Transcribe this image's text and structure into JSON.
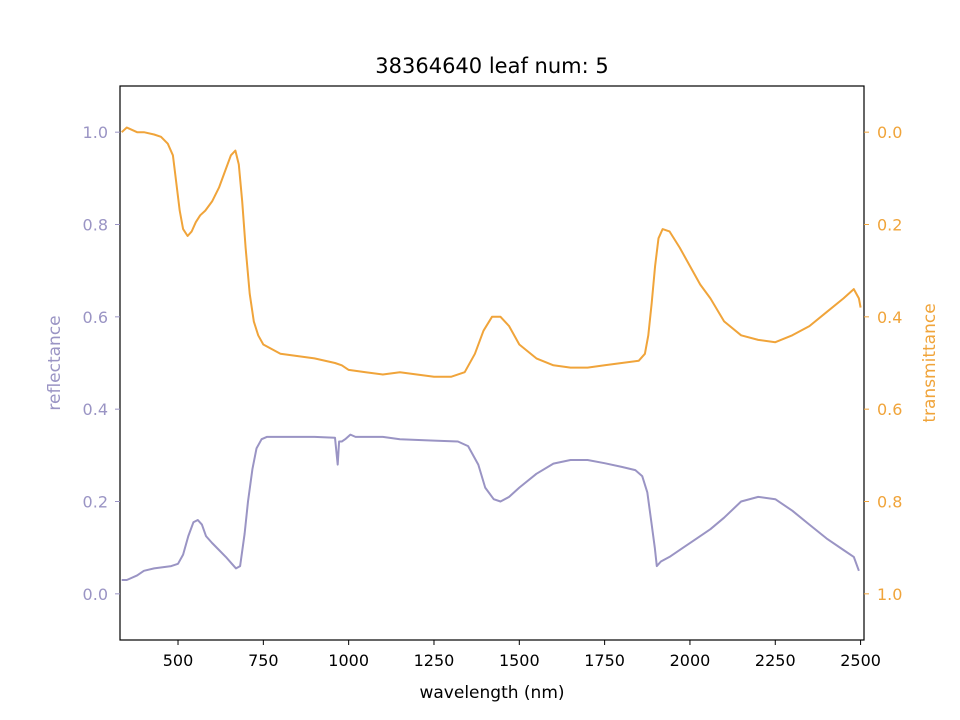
{
  "chart_data": {
    "type": "line",
    "title": "38364640 leaf num: 5",
    "xlabel": "wavelength (nm)",
    "xlim": [
      330,
      2510
    ],
    "x_ticks": [
      500,
      750,
      1000,
      1250,
      1500,
      1750,
      2000,
      2250,
      2500
    ],
    "x_tick_labels": [
      "500",
      "750",
      "1000",
      "1250",
      "1500",
      "1750",
      "2000",
      "2250",
      "2500"
    ],
    "grid": false,
    "left_axis": {
      "label": "reflectance",
      "color": "#9a94c4",
      "lim": [
        -0.1,
        1.1
      ],
      "ticks": [
        0.0,
        0.2,
        0.4,
        0.6,
        0.8,
        1.0
      ],
      "tick_labels": [
        "0.0",
        "0.2",
        "0.4",
        "0.6",
        "0.8",
        "1.0"
      ]
    },
    "right_axis": {
      "label": "transmittance",
      "color": "#f0a43a",
      "lim": [
        -0.1,
        1.1
      ],
      "inverted": true,
      "ticks": [
        0.0,
        0.2,
        0.4,
        0.6,
        0.8,
        1.0
      ],
      "tick_labels": [
        "0.0",
        "0.2",
        "0.4",
        "0.6",
        "0.8",
        "1.0"
      ]
    },
    "series": [
      {
        "axis": "left",
        "color": "#9a94c4",
        "points": [
          [
            335,
            0.03
          ],
          [
            350,
            0.03
          ],
          [
            380,
            0.04
          ],
          [
            400,
            0.05
          ],
          [
            430,
            0.055
          ],
          [
            480,
            0.06
          ],
          [
            500,
            0.065
          ],
          [
            515,
            0.085
          ],
          [
            530,
            0.125
          ],
          [
            545,
            0.155
          ],
          [
            558,
            0.16
          ],
          [
            570,
            0.15
          ],
          [
            582,
            0.125
          ],
          [
            600,
            0.11
          ],
          [
            620,
            0.095
          ],
          [
            640,
            0.08
          ],
          [
            658,
            0.065
          ],
          [
            670,
            0.055
          ],
          [
            682,
            0.06
          ],
          [
            695,
            0.13
          ],
          [
            705,
            0.2
          ],
          [
            718,
            0.27
          ],
          [
            730,
            0.315
          ],
          [
            745,
            0.335
          ],
          [
            760,
            0.34
          ],
          [
            800,
            0.34
          ],
          [
            900,
            0.34
          ],
          [
            960,
            0.338
          ],
          [
            968,
            0.28
          ],
          [
            972,
            0.33
          ],
          [
            980,
            0.33
          ],
          [
            990,
            0.335
          ],
          [
            1005,
            0.345
          ],
          [
            1020,
            0.34
          ],
          [
            1100,
            0.34
          ],
          [
            1150,
            0.335
          ],
          [
            1250,
            0.332
          ],
          [
            1320,
            0.33
          ],
          [
            1350,
            0.32
          ],
          [
            1380,
            0.28
          ],
          [
            1400,
            0.23
          ],
          [
            1425,
            0.205
          ],
          [
            1445,
            0.2
          ],
          [
            1470,
            0.21
          ],
          [
            1500,
            0.23
          ],
          [
            1550,
            0.26
          ],
          [
            1600,
            0.282
          ],
          [
            1650,
            0.29
          ],
          [
            1700,
            0.29
          ],
          [
            1750,
            0.283
          ],
          [
            1800,
            0.275
          ],
          [
            1840,
            0.268
          ],
          [
            1860,
            0.255
          ],
          [
            1875,
            0.22
          ],
          [
            1888,
            0.15
          ],
          [
            1897,
            0.1
          ],
          [
            1903,
            0.06
          ],
          [
            1915,
            0.07
          ],
          [
            1940,
            0.08
          ],
          [
            1980,
            0.1
          ],
          [
            2020,
            0.12
          ],
          [
            2060,
            0.14
          ],
          [
            2100,
            0.165
          ],
          [
            2150,
            0.2
          ],
          [
            2200,
            0.21
          ],
          [
            2250,
            0.205
          ],
          [
            2300,
            0.18
          ],
          [
            2350,
            0.15
          ],
          [
            2400,
            0.12
          ],
          [
            2450,
            0.095
          ],
          [
            2480,
            0.08
          ],
          [
            2495,
            0.05
          ]
        ]
      },
      {
        "axis": "right",
        "color": "#f0a43a",
        "points": [
          [
            335,
            0.0
          ],
          [
            350,
            -0.01
          ],
          [
            380,
            0.0
          ],
          [
            400,
            0.0
          ],
          [
            430,
            0.005
          ],
          [
            450,
            0.01
          ],
          [
            470,
            0.025
          ],
          [
            485,
            0.05
          ],
          [
            495,
            0.11
          ],
          [
            505,
            0.17
          ],
          [
            515,
            0.21
          ],
          [
            528,
            0.225
          ],
          [
            540,
            0.215
          ],
          [
            552,
            0.195
          ],
          [
            565,
            0.18
          ],
          [
            580,
            0.17
          ],
          [
            600,
            0.15
          ],
          [
            620,
            0.12
          ],
          [
            640,
            0.08
          ],
          [
            655,
            0.05
          ],
          [
            668,
            0.04
          ],
          [
            678,
            0.07
          ],
          [
            688,
            0.15
          ],
          [
            698,
            0.25
          ],
          [
            710,
            0.35
          ],
          [
            722,
            0.41
          ],
          [
            735,
            0.44
          ],
          [
            750,
            0.46
          ],
          [
            800,
            0.48
          ],
          [
            900,
            0.49
          ],
          [
            960,
            0.5
          ],
          [
            980,
            0.505
          ],
          [
            1000,
            0.515
          ],
          [
            1050,
            0.52
          ],
          [
            1100,
            0.525
          ],
          [
            1150,
            0.52
          ],
          [
            1200,
            0.525
          ],
          [
            1250,
            0.53
          ],
          [
            1300,
            0.53
          ],
          [
            1340,
            0.52
          ],
          [
            1370,
            0.48
          ],
          [
            1395,
            0.43
          ],
          [
            1420,
            0.4
          ],
          [
            1445,
            0.4
          ],
          [
            1470,
            0.42
          ],
          [
            1500,
            0.46
          ],
          [
            1550,
            0.49
          ],
          [
            1600,
            0.505
          ],
          [
            1650,
            0.51
          ],
          [
            1700,
            0.51
          ],
          [
            1750,
            0.505
          ],
          [
            1800,
            0.5
          ],
          [
            1850,
            0.495
          ],
          [
            1868,
            0.48
          ],
          [
            1878,
            0.44
          ],
          [
            1888,
            0.37
          ],
          [
            1898,
            0.29
          ],
          [
            1908,
            0.23
          ],
          [
            1920,
            0.21
          ],
          [
            1940,
            0.215
          ],
          [
            1970,
            0.25
          ],
          [
            2000,
            0.29
          ],
          [
            2030,
            0.33
          ],
          [
            2060,
            0.36
          ],
          [
            2100,
            0.41
          ],
          [
            2150,
            0.44
          ],
          [
            2200,
            0.45
          ],
          [
            2250,
            0.455
          ],
          [
            2300,
            0.44
          ],
          [
            2350,
            0.42
          ],
          [
            2400,
            0.39
          ],
          [
            2450,
            0.36
          ],
          [
            2480,
            0.34
          ],
          [
            2495,
            0.36
          ],
          [
            2500,
            0.38
          ]
        ]
      }
    ]
  }
}
